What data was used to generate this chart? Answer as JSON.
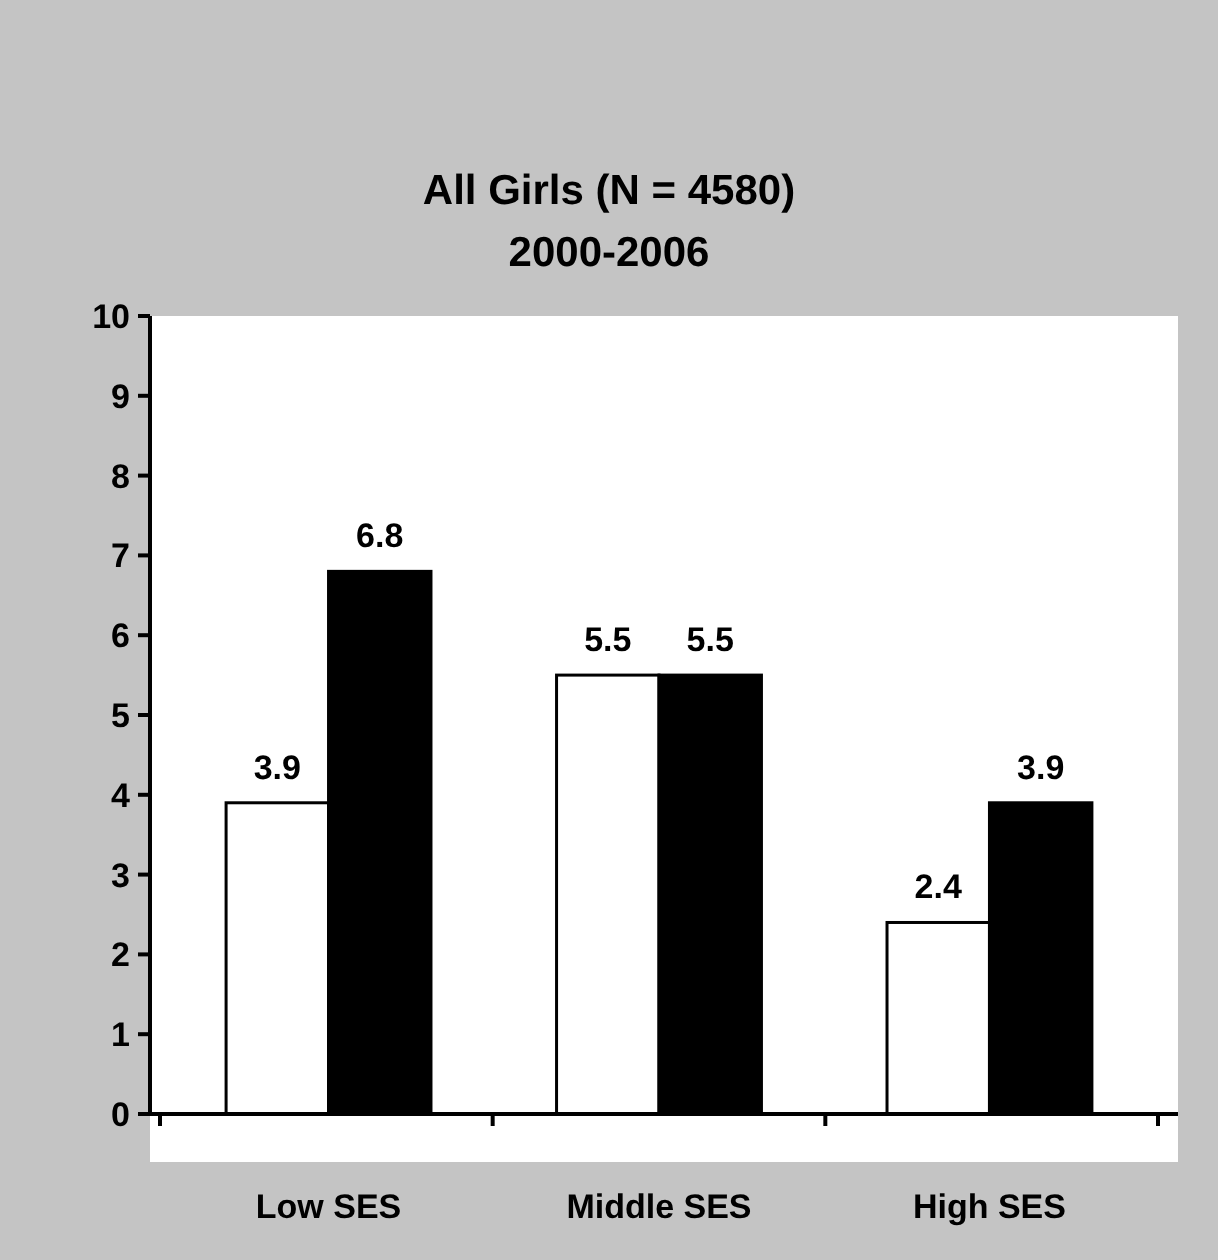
{
  "chart_data": {
    "type": "bar",
    "title": "All Girls (N = 4580)",
    "subtitle": "2000-2006",
    "categories": [
      "Low SES",
      "Middle SES",
      "High SES"
    ],
    "series": [
      {
        "color": "#ffffff",
        "values": [
          3.9,
          5.5,
          2.4
        ]
      },
      {
        "color": "#000000",
        "values": [
          6.8,
          5.5,
          3.9
        ]
      }
    ],
    "ylim": [
      0,
      10
    ],
    "yticks": [
      0,
      1,
      2,
      3,
      4,
      5,
      6,
      7,
      8,
      9,
      10
    ],
    "data_labels": true,
    "grid": false
  }
}
